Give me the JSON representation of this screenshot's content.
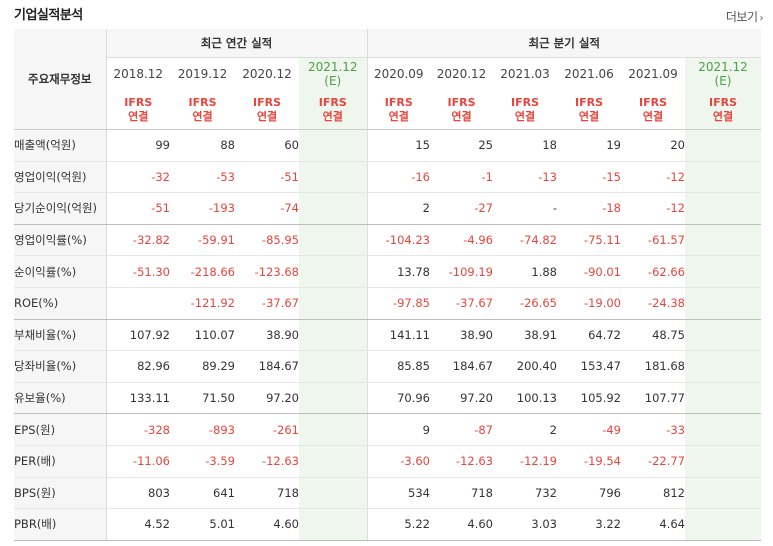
{
  "header": {
    "title": "기업실적분석",
    "more_label": "더보기"
  },
  "table": {
    "row_label_header": "주요재무정보",
    "group_annual": "최근 연간 실적",
    "group_quarter": "최근 분기 실적",
    "periods": [
      "2018.12",
      "2019.12",
      "2020.12",
      "2021.12",
      "2020.09",
      "2020.12",
      "2021.03",
      "2021.06",
      "2021.09",
      "2021.12"
    ],
    "estimate_tag": "(E)",
    "basis_top": "IFRS",
    "basis_bottom": "연결",
    "rows": [
      {
        "label": "매출액(억원)",
        "values": [
          "99",
          "88",
          "60",
          "",
          "15",
          "25",
          "18",
          "19",
          "20",
          ""
        ]
      },
      {
        "label": "영업이익(억원)",
        "values": [
          "-32",
          "-53",
          "-51",
          "",
          "-16",
          "-1",
          "-13",
          "-15",
          "-12",
          ""
        ]
      },
      {
        "label": "당기순이익(억원)",
        "values": [
          "-51",
          "-193",
          "-74",
          "",
          "2",
          "-27",
          "-",
          "-18",
          "-12",
          ""
        ]
      },
      {
        "label": "영업이익률(%)",
        "values": [
          "-32.82",
          "-59.91",
          "-85.95",
          "",
          "-104.23",
          "-4.96",
          "-74.82",
          "-75.11",
          "-61.57",
          ""
        ]
      },
      {
        "label": "순이익률(%)",
        "values": [
          "-51.30",
          "-218.66",
          "-123.68",
          "",
          "13.78",
          "-109.19",
          "1.88",
          "-90.01",
          "-62.66",
          ""
        ]
      },
      {
        "label": "ROE(%)",
        "values": [
          "",
          "-121.92",
          "-37.67",
          "",
          "-97.85",
          "-37.67",
          "-26.65",
          "-19.00",
          "-24.38",
          ""
        ]
      },
      {
        "label": "부채비율(%)",
        "values": [
          "107.92",
          "110.07",
          "38.90",
          "",
          "141.11",
          "38.90",
          "38.91",
          "64.72",
          "48.75",
          ""
        ]
      },
      {
        "label": "당좌비율(%)",
        "values": [
          "82.96",
          "89.29",
          "184.67",
          "",
          "85.85",
          "184.67",
          "200.40",
          "153.47",
          "181.68",
          ""
        ]
      },
      {
        "label": "유보율(%)",
        "values": [
          "133.11",
          "71.50",
          "97.20",
          "",
          "70.96",
          "97.20",
          "100.13",
          "105.92",
          "107.77",
          ""
        ]
      },
      {
        "label": "EPS(원)",
        "values": [
          "-328",
          "-893",
          "-261",
          "",
          "9",
          "-87",
          "2",
          "-49",
          "-33",
          ""
        ]
      },
      {
        "label": "PER(배)",
        "values": [
          "-11.06",
          "-3.59",
          "-12.63",
          "",
          "-3.60",
          "-12.63",
          "-12.19",
          "-19.54",
          "-22.77",
          ""
        ]
      },
      {
        "label": "BPS(원)",
        "values": [
          "803",
          "641",
          "718",
          "",
          "534",
          "718",
          "732",
          "796",
          "812",
          ""
        ]
      },
      {
        "label": "PBR(배)",
        "values": [
          "4.52",
          "5.01",
          "4.60",
          "",
          "5.22",
          "4.60",
          "3.03",
          "3.22",
          "4.64",
          ""
        ]
      }
    ]
  },
  "colors": {
    "negative": "#e8453c",
    "estimate_bg": "#eff6ee",
    "estimate_text": "#4aa048"
  }
}
